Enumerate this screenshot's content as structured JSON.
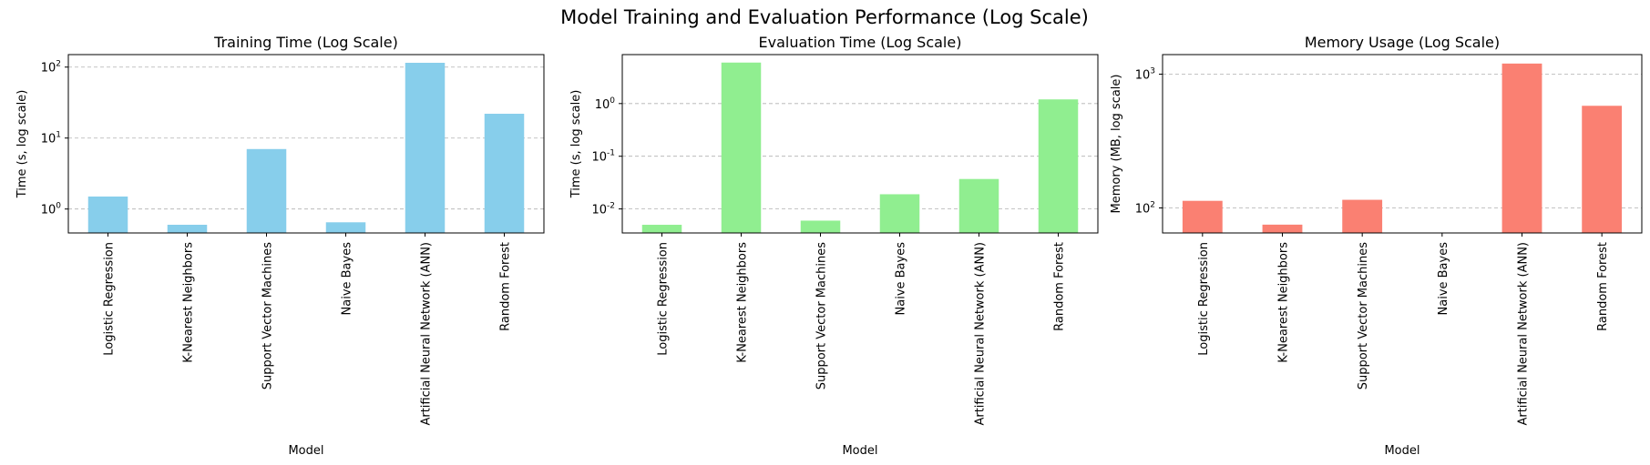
{
  "suptitle": "Model Training and Evaluation Performance (Log Scale)",
  "colors": {
    "training": "#87CEEB",
    "evaluation": "#90EE90",
    "memory": "#FA8072",
    "grid": "#b0b0b0"
  },
  "chart_data": [
    {
      "type": "bar",
      "title": "Training Time (Log Scale)",
      "xlabel": "Model",
      "ylabel": "Time (s, log scale)",
      "yscale": "log",
      "ylim": [
        0.46,
        150
      ],
      "yticks": [
        1,
        10,
        100
      ],
      "grid": "y-dashed",
      "categories": [
        "Logistic Regression",
        "K-Nearest Neighbors",
        "Support Vector Machines",
        "Naive Bayes",
        "Artificial Neural Network (ANN)",
        "Random Forest"
      ],
      "values": [
        1.5,
        0.6,
        7.0,
        0.65,
        115,
        22
      ],
      "color": "#87CEEB"
    },
    {
      "type": "bar",
      "title": "Evaluation Time (Log Scale)",
      "xlabel": "Model",
      "ylabel": "Time (s, log scale)",
      "yscale": "log",
      "ylim": [
        0.0035,
        8.5
      ],
      "yticks": [
        0.01,
        0.1,
        1
      ],
      "grid": "y-dashed",
      "categories": [
        "Logistic Regression",
        "K-Nearest Neighbors",
        "Support Vector Machines",
        "Naive Bayes",
        "Artificial Neural Network (ANN)",
        "Random Forest"
      ],
      "values": [
        0.005,
        6.0,
        0.006,
        0.019,
        0.037,
        1.2
      ],
      "color": "#90EE90"
    },
    {
      "type": "bar",
      "title": "Memory Usage (Log Scale)",
      "xlabel": "Model",
      "ylabel": "Memory (MB, log scale)",
      "yscale": "log",
      "ylim": [
        65,
        1400
      ],
      "yticks": [
        100,
        1000
      ],
      "grid": "y-dashed",
      "categories": [
        "Logistic Regression",
        "K-Nearest Neighbors",
        "Support Vector Machines",
        "Naive Bayes",
        "Artificial Neural Network (ANN)",
        "Random Forest"
      ],
      "values": [
        113,
        75,
        115,
        65,
        1200,
        580
      ],
      "color": "#FA8072"
    }
  ]
}
